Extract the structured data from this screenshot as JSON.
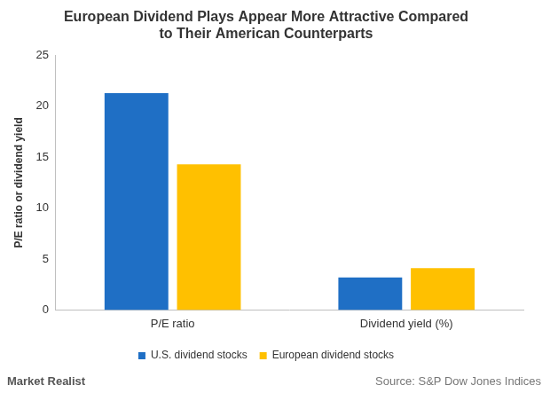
{
  "chart_data": {
    "type": "bar",
    "title": [
      "European Dividend Plays Appear More Attractive Compared",
      "to Their American Counterparts"
    ],
    "y_label": "P/E ratio or dividend yield",
    "categories": [
      "P/E ratio",
      "Dividend yield (%)"
    ],
    "series": [
      {
        "name": "U.S. dividend stocks",
        "color": "#1f6fc5",
        "values": [
          21.3,
          3.2
        ]
      },
      {
        "name": "European dividend stocks",
        "color": "#ffc000",
        "values": [
          14.3,
          4.1
        ]
      }
    ],
    "ylim": [
      0,
      25
    ],
    "yticks": [
      0,
      5,
      10,
      15,
      20,
      25
    ],
    "grid": false,
    "legend": "bottom",
    "source": "Source: S&P Dow Jones Indices",
    "logo": "Market Realist"
  }
}
